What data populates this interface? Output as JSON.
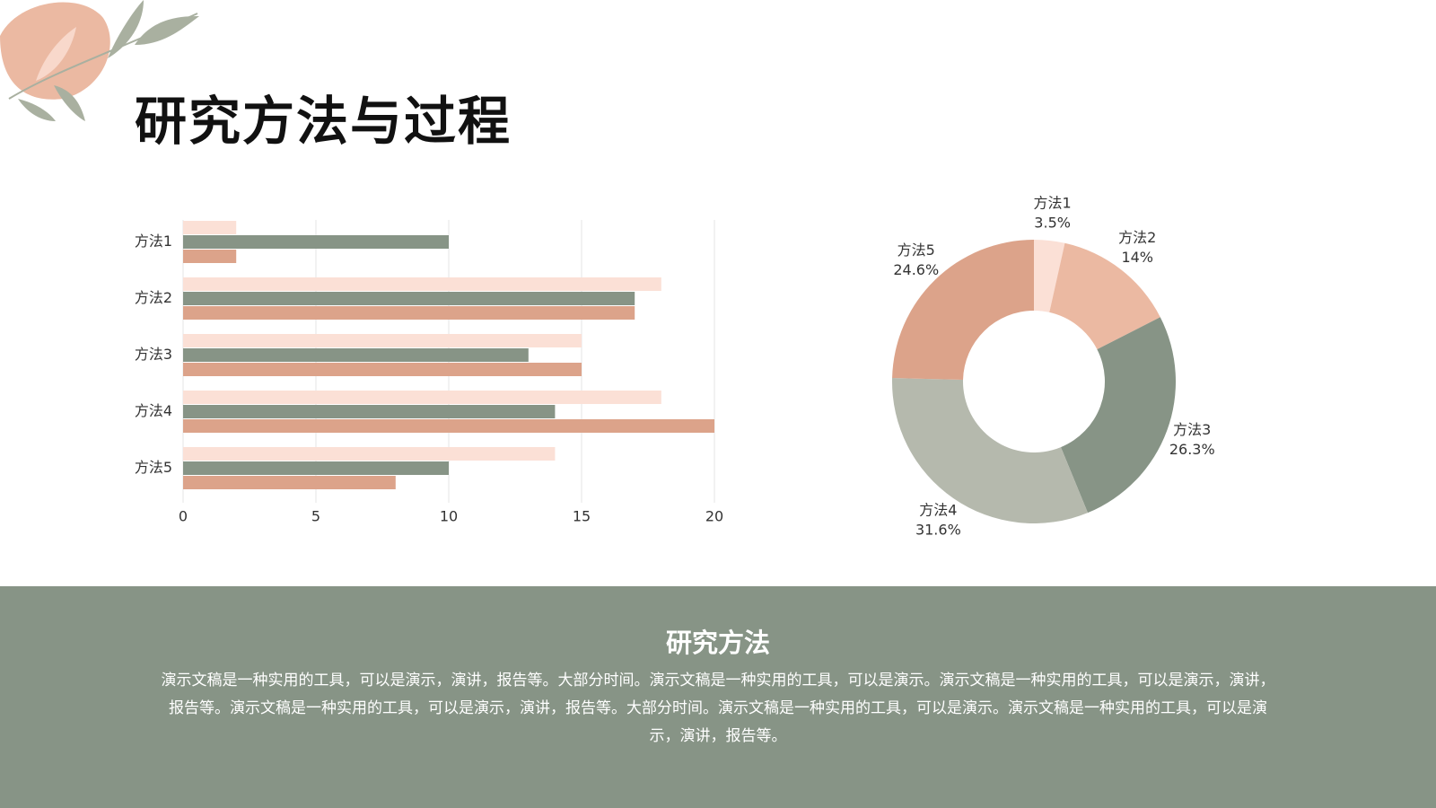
{
  "title": "研究方法与过程",
  "chart_data": [
    {
      "type": "bar",
      "orientation": "horizontal",
      "categories": [
        "方法1",
        "方法2",
        "方法3",
        "方法4",
        "方法5"
      ],
      "series": [
        {
          "color": "#fbe0d6",
          "values": [
            2,
            18,
            15,
            18,
            14
          ]
        },
        {
          "color": "#879486",
          "values": [
            10,
            17,
            13,
            14,
            10
          ]
        },
        {
          "color": "#dca38a",
          "values": [
            2,
            17,
            15,
            20,
            8
          ]
        }
      ],
      "xlim": [
        0,
        20
      ],
      "xticks": [
        0,
        5,
        10,
        15,
        20
      ],
      "grid": true
    },
    {
      "type": "donut",
      "categories": [
        "方法1",
        "方法2",
        "方法3",
        "方法4",
        "方法5"
      ],
      "values": [
        3.5,
        14,
        26.3,
        31.6,
        24.6
      ],
      "value_labels": [
        "3.5%",
        "14%",
        "26.3%",
        "31.6%",
        "24.6%"
      ],
      "colors": [
        "#fbe0d6",
        "#ebb9a2",
        "#879486",
        "#b5b9ad",
        "#dca38a"
      ]
    }
  ],
  "section": {
    "heading": "研究方法",
    "body": "演示文稿是一种实用的工具，可以是演示，演讲，报告等。大部分时间。演示文稿是一种实用的工具，可以是演示。演示文稿是一种实用的工具，可以是演示，演讲，报告等。演示文稿是一种实用的工具，可以是演示，演讲，报告等。大部分时间。演示文稿是一种实用的工具，可以是演示。演示文稿是一种实用的工具，可以是演示，演讲，报告等。"
  }
}
